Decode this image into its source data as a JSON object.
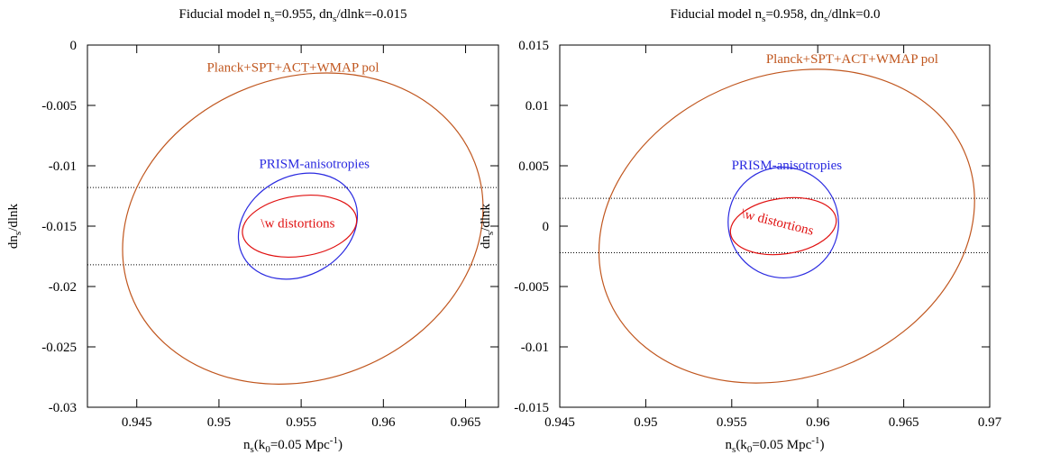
{
  "chart_data": [
    {
      "type": "line",
      "title": "Fiducial model n",
      "title_sub": "s",
      "title_rest": "=0.955, dn",
      "title_sub2": "s",
      "title_end": "/dlnk=-0.015",
      "xlabel": {
        "a": "n",
        "s1": "s",
        "b": "(k",
        "s2": "0",
        "c": "=0.05 Mpc",
        "sup": "-1",
        "d": ")"
      },
      "ylabel": {
        "a": "dn",
        "s1": "s",
        "b": "/dlnk"
      },
      "xlim": [
        0.942,
        0.967
      ],
      "ylim": [
        -0.03,
        0.0
      ],
      "xticks": [
        0.945,
        0.95,
        0.955,
        0.96,
        0.965
      ],
      "xtick_labels": [
        "0.945",
        "0.95",
        "0.955",
        "0.96",
        "0.965"
      ],
      "yticks": [
        0.0,
        -0.005,
        -0.01,
        -0.015,
        -0.02,
        -0.025,
        -0.03
      ],
      "ytick_labels": [
        "0",
        "-0.005",
        "-0.01",
        "-0.015",
        "-0.02",
        "-0.025",
        "-0.03"
      ],
      "series": [
        {
          "name": "Planck+SPT+ACT+WMAP pol",
          "color": "#c0561e",
          "center": [
            0.9551,
            -0.0152
          ],
          "rx": 0.0112,
          "ry": 0.0125,
          "angle_deg": -21
        },
        {
          "name": "PRISM-anisotropies",
          "color": "#2a2ae0",
          "center": [
            0.9548,
            -0.015
          ],
          "rx": 0.0038,
          "ry": 0.0041,
          "angle_deg": -30
        },
        {
          "name": "\\w distortions",
          "color": "#e01010",
          "center": [
            0.9549,
            -0.015
          ],
          "rx": 0.0035,
          "ry": 0.0025,
          "angle_deg": -8
        }
      ],
      "hlines": [
        -0.0118,
        -0.0182
      ],
      "annotations": [
        {
          "text": "Planck+SPT+ACT+WMAP pol",
          "x": 0.9545,
          "y": -0.0022,
          "color": "#c0561e",
          "rotate": 0
        },
        {
          "text": "PRISM-anisotropies",
          "x": 0.9558,
          "y": -0.0102,
          "color": "#2a2ae0",
          "rotate": 0
        },
        {
          "text": "\\w distortions",
          "x": 0.9548,
          "y": -0.0151,
          "color": "#e01010",
          "rotate": 0
        }
      ]
    },
    {
      "type": "line",
      "title": "Fiducial model n",
      "title_sub": "s",
      "title_rest": "=0.958, dn",
      "title_sub2": "s",
      "title_end": "/dlnk=0.0",
      "xlabel": {
        "a": "n",
        "s1": "s",
        "b": "(k",
        "s2": "0",
        "c": "=0.05 Mpc",
        "sup": "-1",
        "d": ")"
      },
      "ylabel": {
        "a": "dn",
        "s1": "s",
        "b": "/dlnk"
      },
      "xlim": [
        0.945,
        0.97
      ],
      "ylim": [
        -0.015,
        0.015
      ],
      "xticks": [
        0.945,
        0.95,
        0.955,
        0.96,
        0.965,
        0.97
      ],
      "xtick_labels": [
        "0.945",
        "0.95",
        "0.955",
        "0.96",
        "0.965",
        "0.97"
      ],
      "yticks": [
        0.015,
        0.01,
        0.005,
        0.0,
        -0.005,
        -0.01,
        -0.015
      ],
      "ytick_labels": [
        "0.015",
        "0.01",
        "0.005",
        "0",
        "-0.005",
        "-0.01",
        "-0.015"
      ],
      "series": [
        {
          "name": "Planck+SPT+ACT+WMAP pol",
          "color": "#c0561e",
          "center": [
            0.9582,
            0.0
          ],
          "rx": 0.0112,
          "ry": 0.0125,
          "angle_deg": -21
        },
        {
          "name": "PRISM-anisotropies",
          "color": "#2a2ae0",
          "center": [
            0.958,
            0.0003
          ],
          "rx": 0.0032,
          "ry": 0.0046,
          "angle_deg": -35
        },
        {
          "name": "\\w distortions",
          "color": "#e01010",
          "center": [
            0.958,
            0.0
          ],
          "rx": 0.0031,
          "ry": 0.0023,
          "angle_deg": -8
        }
      ],
      "hlines": [
        0.0023,
        -0.0022
      ],
      "annotations": [
        {
          "text": "Planck+SPT+ACT+WMAP pol",
          "x": 0.962,
          "y": 0.0135,
          "color": "#c0561e",
          "rotate": 0
        },
        {
          "text": "PRISM-anisotropies",
          "x": 0.9582,
          "y": 0.0047,
          "color": "#2a2ae0",
          "rotate": 0
        },
        {
          "text": "\\w distortions",
          "x": 0.9576,
          "y": 0.0,
          "color": "#e01010",
          "rotate": 14
        }
      ]
    }
  ]
}
